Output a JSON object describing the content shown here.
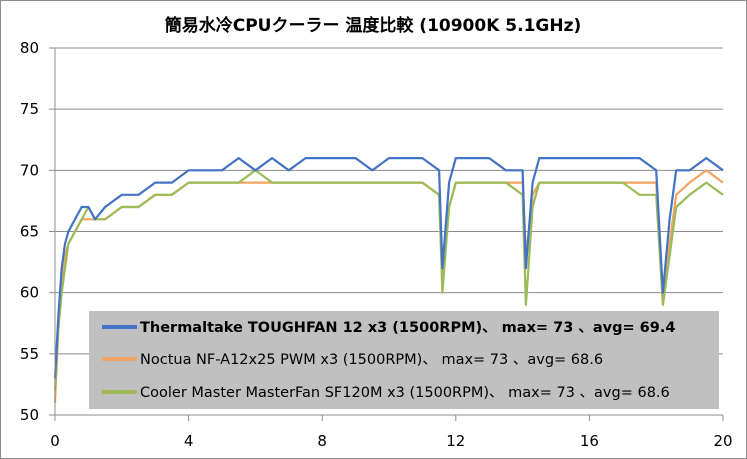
{
  "chart_data": {
    "type": "line",
    "title": "簡易水冷CPUクーラー 温度比較 (10900K 5.1GHz)",
    "xlabel": "",
    "ylabel": "",
    "xlim": [
      0,
      20
    ],
    "ylim": [
      50,
      80
    ],
    "x_ticks": [
      "0",
      "4",
      "8",
      "12",
      "16",
      "20"
    ],
    "y_ticks": [
      "50",
      "55",
      "60",
      "65",
      "70",
      "75",
      "80"
    ],
    "grid": "horizontal",
    "legend_position": "bottom-right, inside plot",
    "series": [
      {
        "name": "Thermaltake TOUGHFAN 12 x3 (1500RPM)、 max= 73 、avg= 69.4",
        "color": "#4472c4",
        "bold": true,
        "x": [
          0,
          0.1,
          0.2,
          0.3,
          0.4,
          0.6,
          0.8,
          1.0,
          1.2,
          1.5,
          2.0,
          2.5,
          3.0,
          3.5,
          4.0,
          4.5,
          5.0,
          5.5,
          6.0,
          6.5,
          7.0,
          7.5,
          8.0,
          8.5,
          9.0,
          9.5,
          10.0,
          10.5,
          11.0,
          11.5,
          11.6,
          11.8,
          12.0,
          12.5,
          13.0,
          13.5,
          14.0,
          14.1,
          14.3,
          14.5,
          15.0,
          15.5,
          16.0,
          16.5,
          17.0,
          17.5,
          18.0,
          18.2,
          18.4,
          18.6,
          19.0,
          19.5,
          20.0
        ],
        "values": [
          53,
          58,
          62,
          64,
          65,
          66,
          67,
          67,
          66,
          67,
          68,
          68,
          69,
          69,
          70,
          70,
          70,
          71,
          70,
          71,
          70,
          71,
          71,
          71,
          71,
          70,
          71,
          71,
          71,
          70,
          62,
          69,
          71,
          71,
          71,
          70,
          70,
          62,
          69,
          71,
          71,
          71,
          71,
          71,
          71,
          71,
          70,
          60,
          66,
          70,
          70,
          71,
          70
        ]
      },
      {
        "name": "Noctua NF-A12x25 PWM x3 (1500RPM)、 max= 73 、avg= 68.6",
        "color": "#f4a460",
        "bold": false,
        "x": [
          0,
          0.1,
          0.2,
          0.3,
          0.4,
          0.6,
          0.8,
          1.0,
          1.2,
          1.5,
          2.0,
          2.5,
          3.0,
          3.5,
          4.0,
          4.5,
          5.0,
          5.5,
          6.0,
          6.5,
          7.0,
          7.5,
          8.0,
          8.5,
          9.0,
          9.5,
          10.0,
          10.5,
          11.0,
          11.5,
          11.6,
          11.8,
          12.0,
          12.5,
          13.0,
          13.5,
          14.0,
          14.1,
          14.3,
          14.5,
          15.0,
          15.5,
          16.0,
          16.5,
          17.0,
          17.5,
          18.0,
          18.2,
          18.4,
          18.6,
          19.0,
          19.5,
          20.0
        ],
        "values": [
          51,
          57,
          61,
          63,
          64,
          65,
          66,
          66,
          66,
          66,
          67,
          67,
          68,
          68,
          69,
          69,
          69,
          69,
          69,
          69,
          69,
          69,
          69,
          69,
          69,
          69,
          69,
          69,
          69,
          68,
          61,
          67,
          69,
          69,
          69,
          69,
          69,
          63,
          68,
          69,
          69,
          69,
          69,
          69,
          69,
          69,
          69,
          59,
          64,
          68,
          69,
          70,
          69
        ]
      },
      {
        "name": "Cooler Master MasterFan SF120M x3 (1500RPM)、 max= 73 、avg= 68.6",
        "color": "#9bbb59",
        "bold": false,
        "x": [
          0,
          0.1,
          0.2,
          0.3,
          0.4,
          0.6,
          0.8,
          1.0,
          1.2,
          1.5,
          2.0,
          2.5,
          3.0,
          3.5,
          4.0,
          4.5,
          5.0,
          5.5,
          6.0,
          6.5,
          7.0,
          7.5,
          8.0,
          8.5,
          9.0,
          9.5,
          10.0,
          10.5,
          11.0,
          11.5,
          11.6,
          11.8,
          12.0,
          12.5,
          13.0,
          13.5,
          14.0,
          14.1,
          14.3,
          14.5,
          15.0,
          15.5,
          16.0,
          16.5,
          17.0,
          17.5,
          18.0,
          18.2,
          18.4,
          18.6,
          19.0,
          19.5,
          20.0
        ],
        "values": [
          52,
          57,
          60,
          62,
          64,
          65,
          66,
          67,
          66,
          66,
          67,
          67,
          68,
          68,
          69,
          69,
          69,
          69,
          70,
          69,
          69,
          69,
          69,
          69,
          69,
          69,
          69,
          69,
          69,
          68,
          60,
          67,
          69,
          69,
          69,
          69,
          68,
          59,
          67,
          69,
          69,
          69,
          69,
          69,
          69,
          68,
          68,
          59,
          63,
          67,
          68,
          69,
          68
        ]
      }
    ]
  }
}
